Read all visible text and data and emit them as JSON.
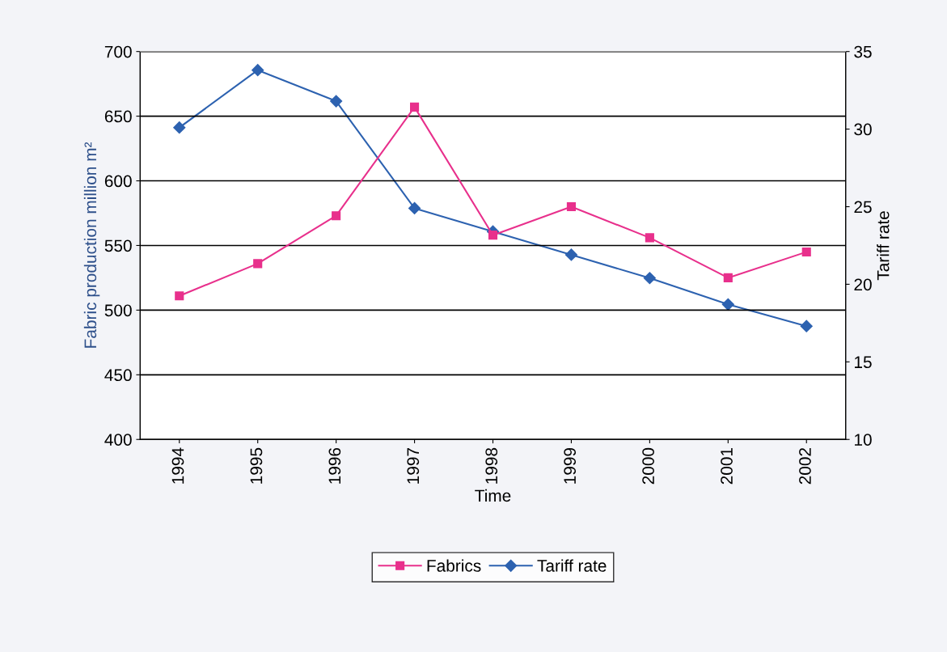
{
  "chart_data": {
    "type": "line",
    "xlabel": "Time",
    "ylabel": "Fabric production million m²",
    "y2label": "Tariff rate",
    "categories": [
      "1994",
      "1995",
      "1996",
      "1997",
      "1998",
      "1999",
      "2000",
      "2001",
      "2002"
    ],
    "series": [
      {
        "name": "Fabrics",
        "color": "#e8308c",
        "marker": "square",
        "values": [
          511,
          536,
          573,
          657,
          558,
          580,
          556,
          525,
          545
        ]
      },
      {
        "name": "Tariff rate",
        "color": "#2d62b0",
        "marker": "diamond",
        "axis": "y2",
        "values": [
          30.1,
          33.8,
          31.8,
          24.9,
          23.4,
          21.9,
          20.4,
          18.7,
          17.3
        ]
      }
    ],
    "ylim": [
      400,
      700
    ],
    "yticks": [
      400,
      450,
      500,
      550,
      600,
      650,
      700
    ],
    "y2lim": [
      10,
      35
    ],
    "y2ticks": [
      10,
      15,
      20,
      25,
      30,
      35
    ],
    "grid": "y",
    "legend": "bottom"
  }
}
